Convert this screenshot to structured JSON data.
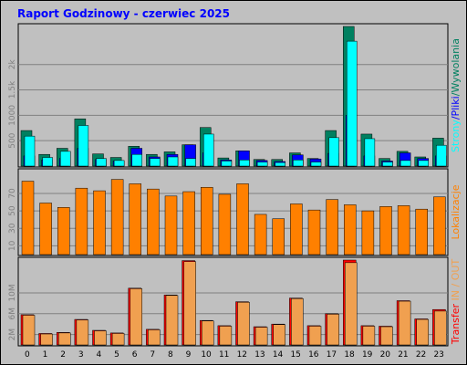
{
  "colors": {
    "frame_bg": "#c0c0c0",
    "plot_bg": "#c0c0c0",
    "title": "#0000ff",
    "pages": "#008060",
    "files": "#0000ff",
    "hits": "#00ffff",
    "visits": "#ff8000",
    "transfer_in": "#ff0000",
    "transfer_out": "#f0a050"
  },
  "chart_data": [
    {
      "type": "bar",
      "title": "Raport Godzinowy -  czerwiec 2025",
      "categories": [
        "0",
        "1",
        "2",
        "3",
        "4",
        "5",
        "6",
        "7",
        "8",
        "9",
        "10",
        "11",
        "12",
        "13",
        "14",
        "15",
        "16",
        "17",
        "18",
        "19",
        "20",
        "21",
        "22",
        "23"
      ],
      "ylim": [
        0,
        2750
      ],
      "yticks": [
        "500",
        "1000",
        "1.5k",
        "2k"
      ],
      "ytick_values": [
        500,
        1000,
        1500,
        2000
      ],
      "series_labels": [
        "Strony",
        "/",
        "Pliki",
        "/",
        "Wywolania"
      ],
      "series": [
        {
          "name": "Strony",
          "values": [
            700,
            230,
            350,
            930,
            240,
            170,
            390,
            230,
            280,
            420,
            760,
            160,
            300,
            130,
            130,
            260,
            150,
            700,
            2750,
            630,
            150,
            290,
            180,
            550
          ]
        },
        {
          "name": "Pliki",
          "values": [
            200,
            120,
            150,
            350,
            130,
            100,
            350,
            180,
            230,
            420,
            260,
            120,
            300,
            110,
            90,
            220,
            140,
            250,
            1000,
            200,
            100,
            260,
            150,
            200
          ]
        },
        {
          "name": "Wywolania",
          "values": [
            590,
            170,
            290,
            800,
            150,
            110,
            230,
            150,
            180,
            150,
            630,
            100,
            120,
            80,
            70,
            120,
            80,
            560,
            2460,
            540,
            80,
            110,
            110,
            410
          ]
        }
      ]
    },
    {
      "type": "bar",
      "categories": [
        "0",
        "1",
        "2",
        "3",
        "4",
        "5",
        "6",
        "7",
        "8",
        "9",
        "10",
        "11",
        "12",
        "13",
        "14",
        "15",
        "16",
        "17",
        "18",
        "19",
        "20",
        "21",
        "22",
        "23"
      ],
      "ylim": [
        0,
        95
      ],
      "yticks": [
        "10",
        "30",
        "50",
        "70"
      ],
      "ytick_values": [
        10,
        30,
        50,
        70
      ],
      "series_labels": [
        "Lokalizacje"
      ],
      "series": [
        {
          "name": "Lokalizacje",
          "values": [
            84,
            59,
            54,
            76,
            73,
            86,
            81,
            75,
            67,
            72,
            77,
            69,
            81,
            46,
            41,
            58,
            51,
            63,
            57,
            50,
            55,
            56,
            52,
            66
          ]
        }
      ]
    },
    {
      "type": "bar",
      "categories": [
        "0",
        "1",
        "2",
        "3",
        "4",
        "5",
        "6",
        "7",
        "8",
        "9",
        "10",
        "11",
        "12",
        "13",
        "14",
        "15",
        "16",
        "17",
        "18",
        "19",
        "20",
        "21",
        "22",
        "23"
      ],
      "ylim": [
        0,
        16.3
      ],
      "yticks": [
        "2M",
        "6M",
        "10M"
      ],
      "ytick_values": [
        2,
        6,
        10
      ],
      "series_labels": [
        "Transfer",
        "IN",
        "/",
        "OUT"
      ],
      "series": [
        {
          "name": "IN",
          "values": [
            5.8,
            2.2,
            2.4,
            4.9,
            2.8,
            2.3,
            10.9,
            3.0,
            9.6,
            16.2,
            4.7,
            3.7,
            8.3,
            3.5,
            4.0,
            9.0,
            3.7,
            6.0,
            16.3,
            3.7,
            3.6,
            8.5,
            5.0,
            6.8
          ]
        },
        {
          "name": "OUT",
          "values": [
            5.7,
            2.1,
            2.3,
            4.8,
            2.7,
            2.2,
            10.8,
            2.9,
            9.5,
            16.0,
            4.6,
            3.6,
            8.2,
            3.4,
            3.9,
            8.9,
            3.6,
            5.9,
            15.8,
            3.6,
            3.5,
            8.4,
            4.9,
            6.5
          ]
        }
      ]
    }
  ]
}
